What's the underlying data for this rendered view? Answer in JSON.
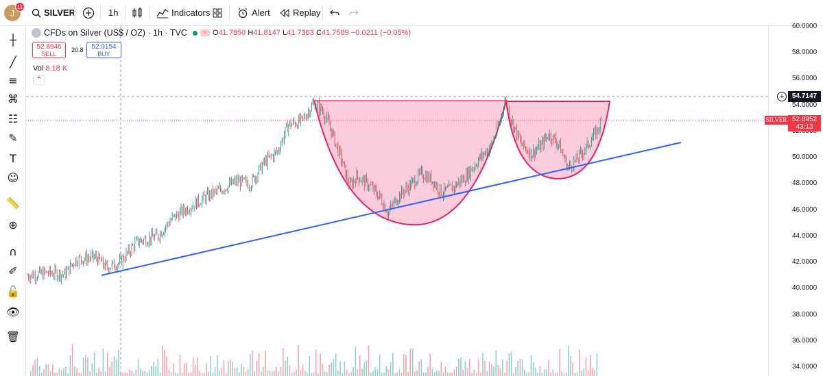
{
  "user": {
    "initial": "J",
    "notifications": "11"
  },
  "toolbar": {
    "symbol": "SILVER",
    "interval": "1h",
    "indicators_label": "Indicators",
    "alert_label": "Alert",
    "replay_label": "Replay"
  },
  "legend": {
    "title": "CFDs on Silver (US$ / OZ) · 1h · TVC",
    "open_label": "O",
    "open": "41.7850",
    "high_label": "H",
    "high": "41.8147",
    "low_label": "L",
    "low": "41.7363",
    "close_label": "C",
    "close": "41.7589",
    "change": "−0.0211 (−0.05%)"
  },
  "trade": {
    "sell_price": "52.8946",
    "sell_label": "SELL",
    "spread": "20.8",
    "buy_price": "52.9154",
    "buy_label": "BUY"
  },
  "volume": {
    "label": "Vol",
    "value": "8.18 K"
  },
  "price_axis": {
    "ticks": [
      "60.0000",
      "58.0000",
      "56.0000",
      "54.0000",
      "52.0000",
      "50.0000",
      "48.0000",
      "46.0000",
      "44.0000",
      "42.0000",
      "40.0000",
      "38.0000",
      "36.0000",
      "34.0000"
    ],
    "crosshair_price": "54.7147",
    "symbol_tag": "SILVER",
    "last_price": "52.8952",
    "countdown": "43:13"
  },
  "colors": {
    "up": "#089981",
    "down": "#f23645",
    "trendline": "#2962ff",
    "pattern_fill": "#f8bbd0",
    "pattern_stroke": "#e91e63"
  },
  "left_tools": [
    "crosshair-icon",
    "trend-line-icon",
    "fib-icon",
    "pattern-icon",
    "forecast-icon",
    "brush-icon",
    "text-icon",
    "emoji-icon",
    "ruler-icon",
    "zoom-in-icon",
    "magnet-icon",
    "lock-drawing-icon",
    "lock-icon",
    "eye-icon",
    "trash-icon"
  ]
}
